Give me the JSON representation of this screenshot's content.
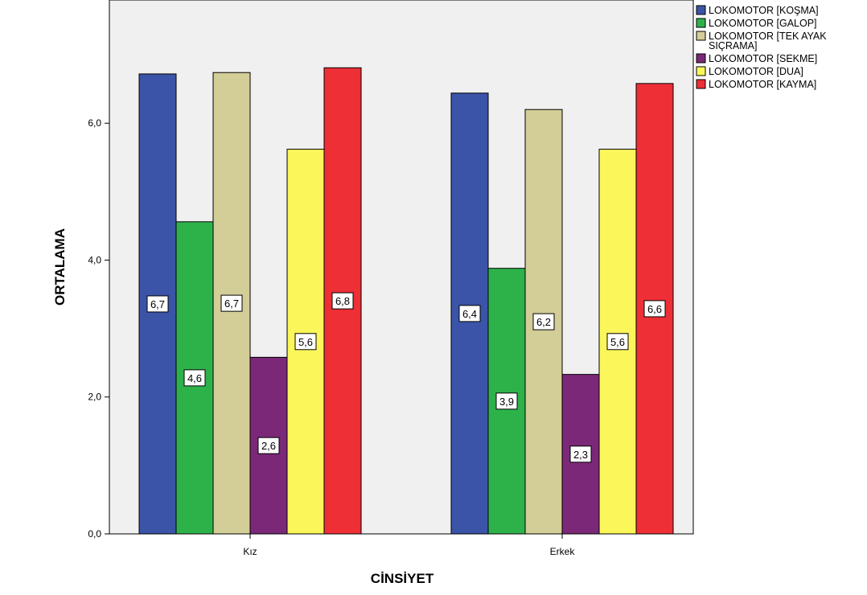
{
  "chart_data": {
    "type": "bar",
    "title": "",
    "xlabel": "CİNSİYET",
    "ylabel": "ORTALAMA",
    "categories": [
      "Kız",
      "Erkek"
    ],
    "ylim": [
      0,
      7.8
    ],
    "yticks": [
      "0,0",
      "2,0",
      "4,0",
      "6,0"
    ],
    "ytick_values": [
      0,
      2,
      4,
      6
    ],
    "grid": false,
    "legend_position": "top-right",
    "plot_background": "#f0f0f0",
    "series": [
      {
        "name": "LOKOMOTOR [KOŞMA]",
        "color": "#3b54a8",
        "values": [
          6.72,
          6.44
        ],
        "labels": [
          "6,7",
          "6,4"
        ]
      },
      {
        "name": "LOKOMOTOR [GALOP]",
        "color": "#2db24a",
        "values": [
          4.56,
          3.88
        ],
        "labels": [
          "4,6",
          "3,9"
        ]
      },
      {
        "name": "LOKOMOTOR [TEK AYAK SIÇRAMA]",
        "legend_lines": [
          "LOKOMOTOR [TEK AYAK",
          "SIÇRAMA]"
        ],
        "color": "#d3cd97",
        "values": [
          6.74,
          6.2
        ],
        "labels": [
          "6,7",
          "6,2"
        ]
      },
      {
        "name": "LOKOMOTOR [SEKME]",
        "color": "#7b2878",
        "values": [
          2.58,
          2.33
        ],
        "labels": [
          "2,6",
          "2,3"
        ]
      },
      {
        "name": "LOKOMOTOR [DUA]",
        "color": "#fbf65a",
        "values": [
          5.62,
          5.62
        ],
        "labels": [
          "5,6",
          "5,6"
        ]
      },
      {
        "name": "LOKOMOTOR [KAYMA]",
        "color": "#ee2f36",
        "values": [
          6.81,
          6.58
        ],
        "labels": [
          "6,8",
          "6,6"
        ]
      }
    ]
  }
}
